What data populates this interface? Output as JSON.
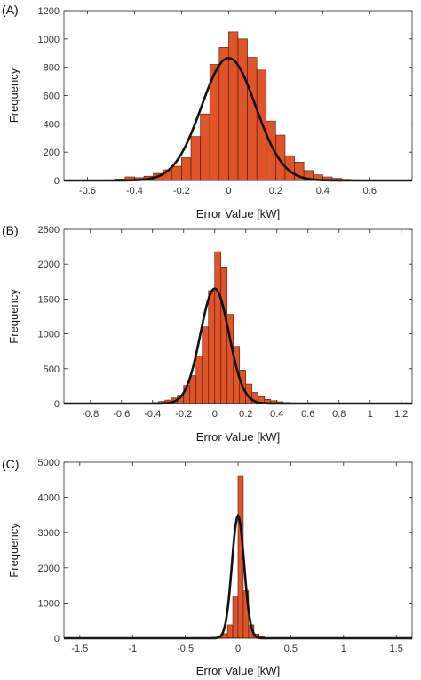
{
  "colors": {
    "bar_fill": "#e0542a",
    "bar_edge": "#4a1a0a",
    "curve": "#111111",
    "axis": "#262626"
  },
  "chart_data": [
    {
      "panel_label": "(A)",
      "type": "bar",
      "xlabel": "Error Value [kW]",
      "ylabel": "Frequency",
      "xlim": [
        -0.7,
        0.78
      ],
      "ylim": [
        0,
        1200
      ],
      "xticks": [
        -0.6,
        -0.4,
        -0.2,
        0,
        0.2,
        0.4,
        0.6
      ],
      "yticks": [
        0,
        200,
        400,
        600,
        800,
        1000,
        1200
      ],
      "grid": false,
      "bin_width": 0.04,
      "bins": [
        -0.6,
        -0.56,
        -0.52,
        -0.48,
        -0.44,
        -0.4,
        -0.36,
        -0.32,
        -0.28,
        -0.24,
        -0.2,
        -0.16,
        -0.12,
        -0.08,
        -0.04,
        0,
        0.04,
        0.08,
        0.12,
        0.16,
        0.2,
        0.24,
        0.28,
        0.32,
        0.36,
        0.4,
        0.44,
        0.48,
        0.52,
        0.56,
        0.6
      ],
      "counts": [
        2,
        3,
        5,
        10,
        25,
        20,
        30,
        50,
        75,
        100,
        160,
        310,
        470,
        820,
        940,
        1050,
        1000,
        870,
        780,
        420,
        320,
        175,
        130,
        70,
        40,
        25,
        15,
        8,
        5,
        3,
        2
      ],
      "fit": {
        "type": "normal",
        "mean": 0,
        "sd": 0.115,
        "peak": 865
      }
    },
    {
      "panel_label": "(B)",
      "type": "bar",
      "xlabel": "Error Value [kW]",
      "ylabel": "Frequency",
      "xlim": [
        -0.97,
        1.27
      ],
      "ylim": [
        0,
        2500
      ],
      "xticks": [
        -0.8,
        -0.6,
        -0.4,
        -0.2,
        0,
        0.2,
        0.4,
        0.6,
        0.8,
        1,
        1.2
      ],
      "yticks": [
        0,
        500,
        1000,
        1500,
        2000,
        2500
      ],
      "grid": false,
      "bin_width": 0.04,
      "bins": [
        -0.48,
        -0.44,
        -0.4,
        -0.36,
        -0.32,
        -0.28,
        -0.24,
        -0.2,
        -0.16,
        -0.12,
        -0.08,
        -0.04,
        0,
        0.04,
        0.08,
        0.12,
        0.16,
        0.2,
        0.24,
        0.28,
        0.32,
        0.36,
        0.4,
        0.44,
        0.48,
        0.52
      ],
      "counts": [
        5,
        10,
        15,
        30,
        50,
        80,
        120,
        260,
        400,
        680,
        1100,
        1620,
        2180,
        1960,
        1280,
        820,
        480,
        280,
        160,
        100,
        60,
        40,
        25,
        15,
        10,
        5
      ],
      "fit": {
        "type": "normal",
        "mean": 0,
        "sd": 0.092,
        "peak": 1650
      }
    },
    {
      "panel_label": "(C)",
      "type": "bar",
      "xlabel": "Error Value [kW]",
      "ylabel": "Frequency",
      "xlim": [
        -1.65,
        1.65
      ],
      "ylim": [
        0,
        5000
      ],
      "xticks": [
        -1.5,
        -1,
        -0.5,
        0,
        0.5,
        1,
        1.5
      ],
      "yticks": [
        0,
        1000,
        2000,
        3000,
        4000,
        5000
      ],
      "grid": false,
      "bin_width": 0.05,
      "bins": [
        -0.35,
        -0.3,
        -0.25,
        -0.2,
        -0.15,
        -0.1,
        -0.05,
        0,
        0.05,
        0.1,
        0.15,
        0.2,
        0.25
      ],
      "counts": [
        5,
        15,
        30,
        60,
        130,
        380,
        1200,
        4620,
        1350,
        380,
        120,
        40,
        10
      ],
      "fit": {
        "type": "normal",
        "mean": 0,
        "sd": 0.058,
        "peak": 3480
      }
    }
  ]
}
